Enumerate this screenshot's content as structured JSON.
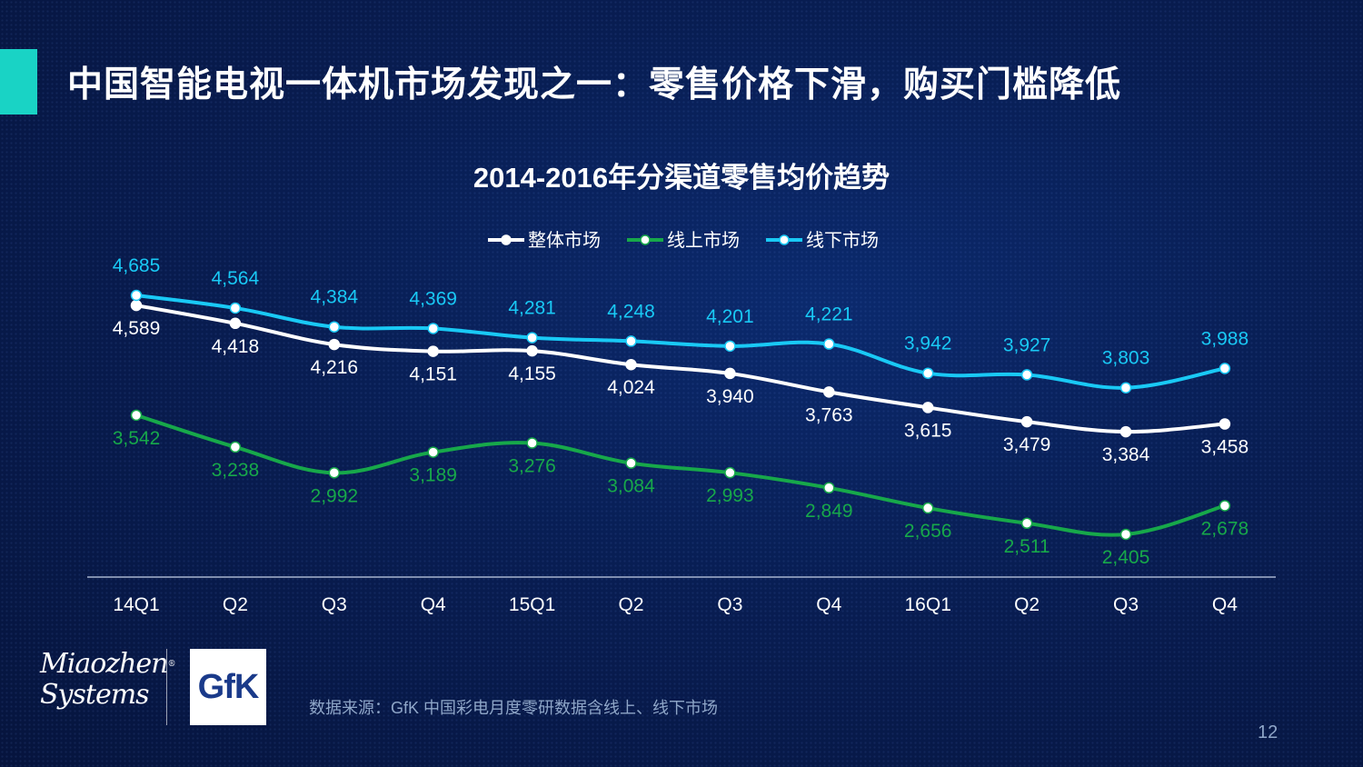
{
  "slide": {
    "title": "中国智能电视一体机市场发现之一：零售价格下滑，购买门槛降低",
    "source": "数据来源：GfK 中国彩电月度零研数据含线上、线下市场",
    "page_number": "12",
    "logos": {
      "miaozhen_line1": "Miaozhen",
      "miaozhen_line2": "Systems",
      "gfk": "GfK"
    }
  },
  "colors": {
    "overall": "#ffffff",
    "online": "#17a84a",
    "offline": "#19c9f5",
    "axis": "#c8d4ea"
  },
  "chart_data": {
    "type": "line",
    "title": "2014-2016年分渠道零售均价趋势",
    "xlabel": "",
    "ylabel": "",
    "ylim": [
      1700,
      4900
    ],
    "grid": false,
    "legend_position": "top-center",
    "categories": [
      "14Q1",
      "Q2",
      "Q3",
      "Q4",
      "15Q1",
      "Q2",
      "Q3",
      "Q4",
      "16Q1",
      "Q2",
      "Q3",
      "Q4"
    ],
    "series": [
      {
        "name": "整体市场",
        "key": "overall",
        "values": [
          4589,
          4418,
          4216,
          4151,
          4155,
          4024,
          3940,
          3763,
          3615,
          3479,
          3384,
          3458
        ],
        "labels": [
          "4,589",
          "4,418",
          "4,216",
          "4,151",
          "4,155",
          "4,024",
          "3,940",
          "3,763",
          "3,615",
          "3,479",
          "3,384",
          "3,458"
        ]
      },
      {
        "name": "线上市场",
        "key": "online",
        "values": [
          3542,
          3238,
          2992,
          3189,
          3276,
          3084,
          2993,
          2849,
          2656,
          2511,
          2405,
          2678
        ],
        "labels": [
          "3,542",
          "3,238",
          "2,992",
          "3,189",
          "3,276",
          "3,084",
          "2,993",
          "2,849",
          "2,656",
          "2,511",
          "2,405",
          "2,678"
        ]
      },
      {
        "name": "线下市场",
        "key": "offline",
        "values": [
          4685,
          4564,
          4384,
          4369,
          4281,
          4248,
          4201,
          4221,
          3942,
          3927,
          3803,
          3988
        ],
        "labels": [
          "4,685",
          "4,564",
          "4,384",
          "4,369",
          "4,281",
          "4,248",
          "4,201",
          "4,221",
          "3,942",
          "3,927",
          "3,803",
          "3,988"
        ]
      }
    ]
  }
}
